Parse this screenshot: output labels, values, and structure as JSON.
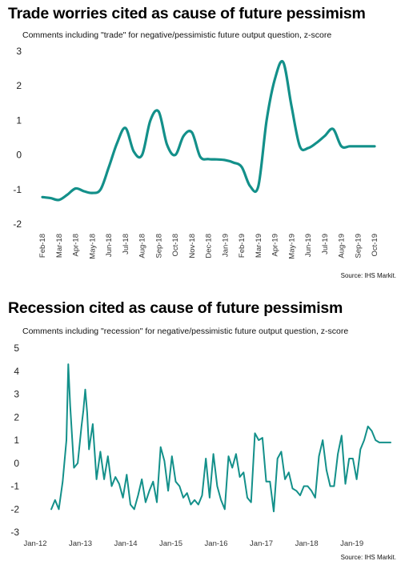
{
  "chart_data": [
    {
      "type": "line",
      "title": "Trade worries cited as cause of future pessimism",
      "subtitle": "Comments including \"trade\" for negative/pessimistic future output question, z-score",
      "source": "Source: IHS Markit.",
      "ylim": [
        -2,
        3
      ],
      "yticks": [
        "3",
        "2",
        "1",
        "0",
        "-1",
        "-2"
      ],
      "yticks_values": [
        3,
        2,
        1,
        0,
        -1,
        -2
      ],
      "categories": [
        "Feb-18",
        "Mar-18",
        "Apr-18",
        "May-18",
        "Jun-18",
        "Jul-18",
        "Aug-18",
        "Sep-18",
        "Oct-18",
        "Nov-18",
        "Dec-18",
        "Jan-19",
        "Feb-19",
        "Mar-19",
        "Apr-19",
        "May-19",
        "Jun-19",
        "Jul-19",
        "Aug-19",
        "Sep-19",
        "Oct-19"
      ],
      "x": [
        0,
        0.5,
        1,
        1.5,
        2,
        2.5,
        3,
        3.5,
        4,
        4.5,
        5,
        5.5,
        6,
        6.5,
        7,
        7.5,
        8,
        8.5,
        9,
        9.5,
        10,
        10.5,
        11,
        11.5,
        12,
        12.5,
        13,
        13.5,
        14,
        14.5,
        15,
        15.5,
        16,
        16.5,
        17,
        17.5,
        18,
        18.5,
        19,
        19.5,
        20
      ],
      "series": [
        {
          "color": "#13908a",
          "values": [
            -1.22,
            -1.25,
            -1.3,
            -1.15,
            -0.97,
            -1.05,
            -1.1,
            -1.0,
            -0.35,
            0.35,
            0.78,
            0.1,
            0.0,
            1.0,
            1.25,
            0.3,
            0.0,
            0.55,
            0.65,
            -0.05,
            -0.12,
            -0.13,
            -0.15,
            -0.22,
            -0.35,
            -0.9,
            -0.9,
            1.0,
            2.2,
            2.68,
            1.4,
            0.25,
            0.2,
            0.35,
            0.55,
            0.75,
            0.25,
            0.25,
            0.25,
            0.25,
            0.25
          ]
        }
      ],
      "grid": false,
      "legend": "none"
    },
    {
      "type": "line",
      "title": "Recession cited as cause of future pessimism",
      "subtitle": "Comments including \"recession\" for negative/pessimistic future output question, z-score",
      "source": "Source: IHS Markit.",
      "ylim": [
        -3,
        5
      ],
      "yticks": [
        "5",
        "4",
        "3",
        "2",
        "1",
        "0",
        "-1",
        "-2",
        "-3"
      ],
      "yticks_values": [
        5,
        4,
        3,
        2,
        1,
        0,
        -1,
        -2,
        -3
      ],
      "xticks": [
        "Jan-12",
        "Jan-13",
        "Jan-14",
        "Jan-15",
        "Jan-16",
        "Jan-17",
        "Jan-18",
        "Jan-19"
      ],
      "xticks_values": [
        0,
        12,
        24,
        36,
        48,
        60,
        72,
        84
      ],
      "x_range": [
        0,
        93
      ],
      "series": [
        {
          "color": "#13908a",
          "x": [
            3,
            4,
            5,
            6,
            7,
            7.5,
            8,
            9,
            10,
            11,
            11.5,
            12,
            12.5,
            13,
            14,
            15,
            16,
            17,
            18,
            19,
            20,
            21,
            22,
            23,
            24,
            25,
            26,
            27,
            28,
            29,
            30,
            31,
            32,
            33,
            34,
            35,
            36,
            37,
            38,
            39,
            40,
            41,
            42,
            43,
            44,
            45,
            46,
            47,
            48,
            49,
            50,
            51,
            52,
            53,
            54,
            55,
            56,
            57,
            58,
            59,
            60,
            61,
            62,
            63,
            64,
            65,
            66,
            67,
            68,
            69,
            70,
            71,
            72,
            73,
            74,
            75,
            76,
            77,
            78,
            79,
            80,
            81,
            82,
            83,
            84,
            85,
            86,
            87,
            88,
            89,
            90,
            91,
            92,
            93
          ],
          "values": [
            -2.0,
            -1.6,
            -2.0,
            -0.8,
            1.0,
            4.3,
            2.5,
            -0.2,
            0.0,
            1.6,
            2.3,
            3.2,
            2.2,
            0.6,
            1.7,
            -0.7,
            0.5,
            -0.7,
            0.3,
            -1.0,
            -0.6,
            -0.9,
            -1.5,
            -0.5,
            -1.8,
            -2.0,
            -1.4,
            -0.7,
            -1.7,
            -1.2,
            -0.8,
            -1.7,
            0.7,
            0.1,
            -1.2,
            0.3,
            -0.8,
            -1.0,
            -1.5,
            -1.3,
            -1.8,
            -1.6,
            -1.8,
            -1.4,
            0.2,
            -1.5,
            0.4,
            -1.0,
            -1.6,
            -2.0,
            0.3,
            -0.2,
            0.4,
            -0.6,
            -0.4,
            -1.5,
            -1.7,
            1.3,
            1.0,
            1.1,
            -0.8,
            -0.8,
            -2.1,
            0.2,
            0.5,
            -0.7,
            -0.4,
            -1.1,
            -1.2,
            -1.4,
            -1.0,
            -1.0,
            -1.2,
            -1.5,
            0.3,
            1.0,
            -0.3,
            -1.0,
            -1.0,
            0.4,
            1.2,
            -0.9,
            0.2,
            0.2,
            -0.7,
            0.6,
            1.0,
            1.6,
            1.4,
            1.0,
            0.9,
            0.9,
            0.9,
            0.9
          ]
        }
      ],
      "grid": false,
      "legend": "none"
    }
  ]
}
